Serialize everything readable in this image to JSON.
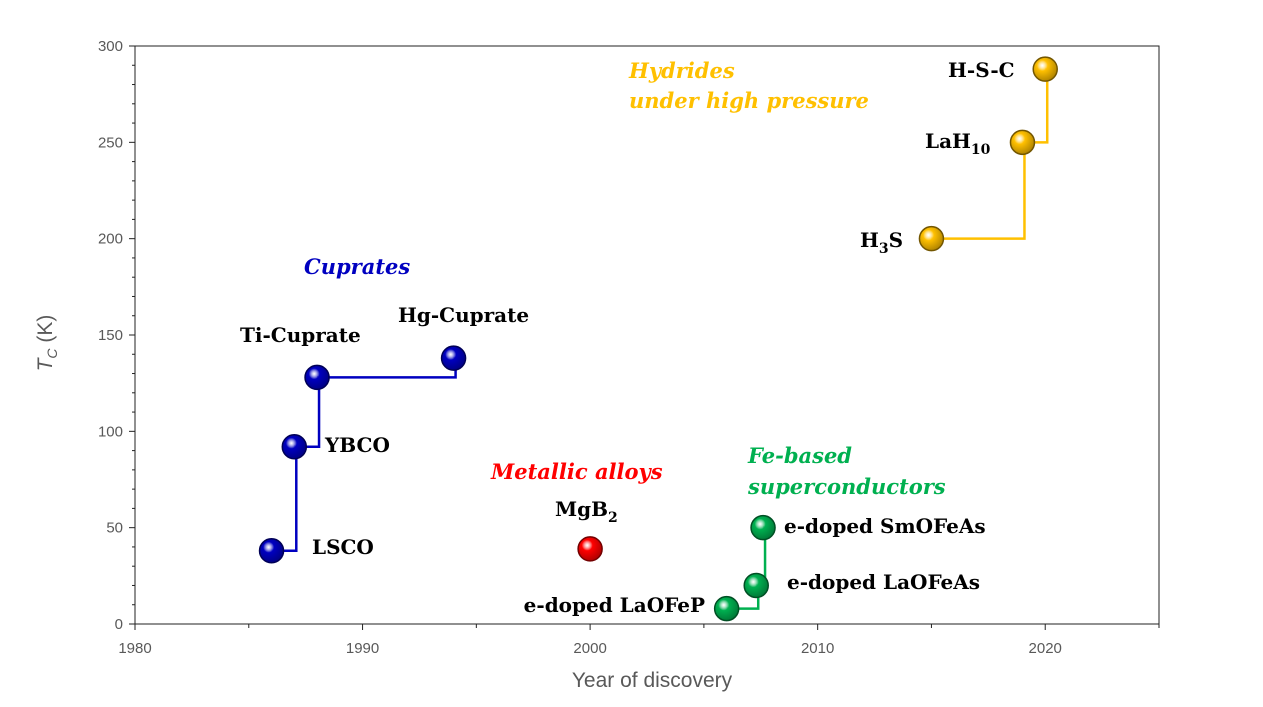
{
  "chart_data": {
    "type": "scatter",
    "xlabel": "Year of discovery",
    "ylabel_main": "T",
    "ylabel_sub": "C",
    "ylabel_unit": " (K)",
    "xlim": [
      1980,
      2025
    ],
    "ylim": [
      0,
      300
    ],
    "x_ticks": [
      1980,
      1990,
      2000,
      2010,
      2020
    ],
    "y_ticks": [
      0,
      50,
      100,
      150,
      200,
      250,
      300
    ],
    "grid": false,
    "groups": [
      {
        "label": "Cuprates",
        "color": "#0000c0",
        "points": [
          {
            "label": "LSCO",
            "x": 1986,
            "y": 38
          },
          {
            "label": "YBCO",
            "x": 1987,
            "y": 92
          },
          {
            "label": "Ti-Cuprate",
            "x": 1988,
            "y": 128
          },
          {
            "label": "Hg-Cuprate",
            "x": 1994,
            "y": 138
          }
        ]
      },
      {
        "label": "Metallic alloys",
        "color": "#ff0000",
        "points": [
          {
            "label": "MgB",
            "sub": "2",
            "x": 2000,
            "y": 39
          }
        ]
      },
      {
        "label_lines": [
          "Fe-based",
          "superconductors"
        ],
        "color": "#00b050",
        "points": [
          {
            "label": "e-doped LaOFeP",
            "x": 2006,
            "y": 8
          },
          {
            "label": "e-doped LaOFeAs",
            "x": 2007.3,
            "y": 20
          },
          {
            "label": "e-doped SmOFeAs",
            "x": 2007.6,
            "y": 50
          }
        ]
      },
      {
        "label_lines": [
          "Hydrides",
          "under high pressure"
        ],
        "color": "#ffc000",
        "points": [
          {
            "label": "H",
            "sub": "3",
            "label_rest": "S",
            "x": 2015,
            "y": 200
          },
          {
            "label": "LaH",
            "sub": "10",
            "x": 2019,
            "y": 250
          },
          {
            "label": "H-S-C",
            "x": 2020,
            "y": 288
          }
        ]
      }
    ]
  }
}
